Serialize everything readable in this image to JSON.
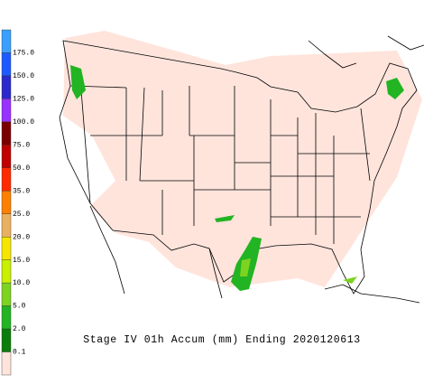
{
  "title": "Stage IV 01h Accum (mm) Ending 2020120613",
  "legend": {
    "labels": [
      "175.0",
      "150.0",
      "125.0",
      "100.0",
      "75.0",
      "50.0",
      "35.0",
      "25.0",
      "20.0",
      "15.0",
      "10.0",
      "5.0",
      "2.0",
      "0.1"
    ],
    "colors": [
      "#3aa0ff",
      "#1e5aff",
      "#2a2acc",
      "#9933ff",
      "#7a0000",
      "#c00000",
      "#ff2a00",
      "#ff8000",
      "#e8b060",
      "#f5e600",
      "#c8f000",
      "#7ed321",
      "#22b422",
      "#0a7d0a",
      "#ffe4dc"
    ]
  }
}
